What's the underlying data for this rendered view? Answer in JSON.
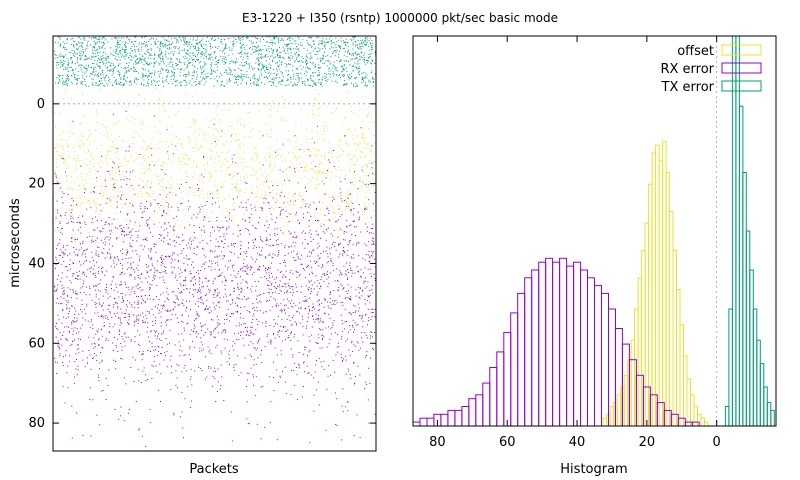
{
  "title": "E3-1220 + I350 (rsntp) 1000000 pkt/sec basic mode",
  "colors": {
    "offset": "#e8e330",
    "rx": "#9400d3",
    "tx": "#009e73",
    "grid": "#a0a0a0"
  },
  "chart_data": [
    {
      "type": "scatter",
      "xlabel": "Packets",
      "ylabel": "microseconds",
      "ylim": [
        87,
        -17
      ],
      "yticks": [
        0,
        20,
        40,
        60,
        80
      ],
      "y_inverted": true,
      "series": [
        {
          "name": "offset",
          "distribution": {
            "mean": 16,
            "sd": 9,
            "points": 1500
          }
        },
        {
          "name": "RX error",
          "distribution": {
            "mean": 45,
            "sd": 14,
            "points": 3000
          }
        },
        {
          "name": "TX error",
          "distribution": {
            "min": -17,
            "max": -4.5,
            "points": 2200
          }
        }
      ]
    },
    {
      "type": "bar",
      "xlabel": "Histogram",
      "xlim": [
        87,
        -17
      ],
      "xticks": [
        80,
        60,
        40,
        20,
        0
      ],
      "legend_position": "top-right",
      "series": [
        {
          "name": "offset",
          "color": "#e8e330",
          "bins": [
            [
              32,
              0.02
            ],
            [
              31,
              0.03
            ],
            [
              30,
              0.05
            ],
            [
              29,
              0.06
            ],
            [
              28,
              0.08
            ],
            [
              27,
              0.1
            ],
            [
              26,
              0.13
            ],
            [
              25,
              0.17
            ],
            [
              24,
              0.22
            ],
            [
              23,
              0.3
            ],
            [
              22,
              0.38
            ],
            [
              21,
              0.45
            ],
            [
              20,
              0.52
            ],
            [
              19,
              0.62
            ],
            [
              18,
              0.7
            ],
            [
              17,
              0.72
            ],
            [
              16,
              0.68
            ],
            [
              15,
              0.73
            ],
            [
              14,
              0.65
            ],
            [
              13,
              0.55
            ],
            [
              12,
              0.45
            ],
            [
              11,
              0.35
            ],
            [
              10,
              0.26
            ],
            [
              9,
              0.18
            ],
            [
              8,
              0.12
            ],
            [
              7,
              0.08
            ],
            [
              6,
              0.05
            ],
            [
              5,
              0.03
            ],
            [
              4,
              0.02
            ],
            [
              3,
              0.01
            ]
          ]
        },
        {
          "name": "RX error",
          "color": "#9400d3",
          "bins": [
            [
              86,
              0.01
            ],
            [
              84,
              0.02
            ],
            [
              82,
              0.02
            ],
            [
              80,
              0.03
            ],
            [
              78,
              0.03
            ],
            [
              76,
              0.04
            ],
            [
              74,
              0.04
            ],
            [
              72,
              0.05
            ],
            [
              70,
              0.07
            ],
            [
              68,
              0.08
            ],
            [
              66,
              0.11
            ],
            [
              64,
              0.15
            ],
            [
              62,
              0.19
            ],
            [
              60,
              0.24
            ],
            [
              58,
              0.29
            ],
            [
              56,
              0.34
            ],
            [
              54,
              0.38
            ],
            [
              52,
              0.4
            ],
            [
              50,
              0.42
            ],
            [
              48,
              0.43
            ],
            [
              46,
              0.42
            ],
            [
              44,
              0.43
            ],
            [
              42,
              0.41
            ],
            [
              40,
              0.42
            ],
            [
              38,
              0.4
            ],
            [
              36,
              0.38
            ],
            [
              34,
              0.36
            ],
            [
              32,
              0.34
            ],
            [
              30,
              0.3
            ],
            [
              28,
              0.25
            ],
            [
              26,
              0.21
            ],
            [
              24,
              0.17
            ],
            [
              22,
              0.13
            ],
            [
              20,
              0.1
            ],
            [
              18,
              0.08
            ],
            [
              16,
              0.06
            ],
            [
              14,
              0.04
            ],
            [
              12,
              0.03
            ],
            [
              10,
              0.02
            ],
            [
              8,
              0.01
            ],
            [
              6,
              0.01
            ]
          ]
        },
        {
          "name": "TX error",
          "color": "#009e73",
          "bins": [
            [
              -3,
              0.05
            ],
            [
              -4,
              0.3
            ],
            [
              -5,
              1.3
            ],
            [
              -6,
              1.25
            ],
            [
              -7,
              0.82
            ],
            [
              -8,
              0.65
            ],
            [
              -9,
              0.5
            ],
            [
              -10,
              0.4
            ],
            [
              -11,
              0.3
            ],
            [
              -12,
              0.22
            ],
            [
              -13,
              0.16
            ],
            [
              -14,
              0.1
            ],
            [
              -15,
              0.06
            ],
            [
              -16,
              0.04
            ]
          ]
        }
      ]
    }
  ]
}
